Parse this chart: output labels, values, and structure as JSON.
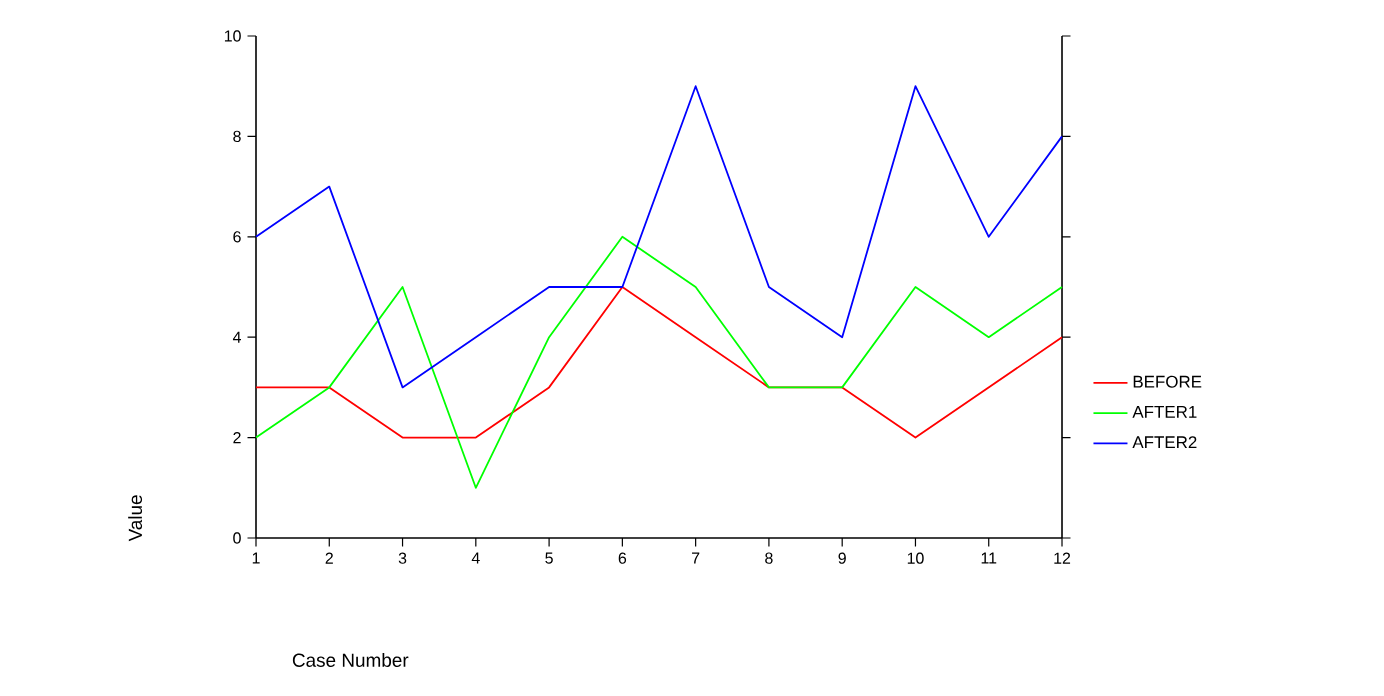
{
  "chart_data": {
    "type": "line",
    "xlabel": "Case Number",
    "ylabel": "Value",
    "x": [
      1,
      2,
      3,
      4,
      5,
      6,
      7,
      8,
      9,
      10,
      11,
      12
    ],
    "series": [
      {
        "name": "BEFORE",
        "color": "#ff0000",
        "values": [
          3,
          3,
          2,
          2,
          3,
          5,
          4,
          3,
          3,
          2,
          3,
          4
        ]
      },
      {
        "name": "AFTER1",
        "color": "#00ff00",
        "values": [
          2,
          3,
          5,
          1,
          4,
          6,
          5,
          3,
          3,
          5,
          4,
          5
        ]
      },
      {
        "name": "AFTER2",
        "color": "#0000ff",
        "values": [
          6,
          7,
          3,
          4,
          5,
          5,
          9,
          5,
          4,
          9,
          6,
          8
        ]
      }
    ],
    "xlim": [
      1,
      12
    ],
    "xticks": [
      1,
      2,
      3,
      4,
      5,
      6,
      7,
      8,
      9,
      10,
      11,
      12
    ],
    "ylim": [
      0,
      10
    ],
    "yticks": [
      0,
      2,
      4,
      6,
      8,
      10
    ],
    "grid": false,
    "legend": "right",
    "marker": "none",
    "line_style": "solid"
  }
}
